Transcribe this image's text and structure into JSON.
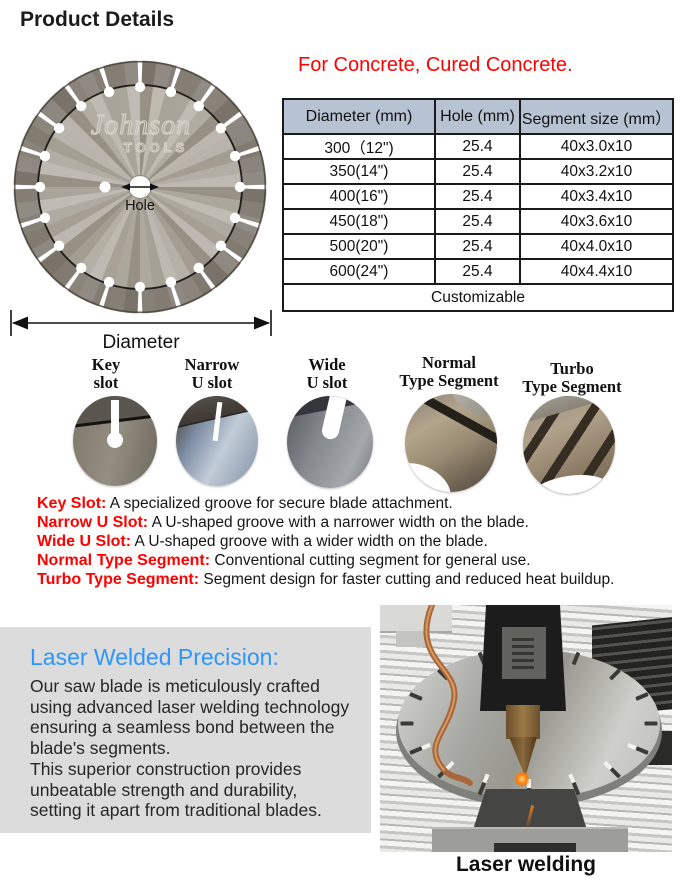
{
  "page": {
    "title": "Product Details"
  },
  "intro": {
    "subtitle": "For Concrete, Cured Concrete."
  },
  "blade": {
    "brand_line1": "Johnson",
    "brand_line2": "TOOLS",
    "hole_label": "Hole",
    "diameter_label": "Diameter"
  },
  "spec_table": {
    "headers": [
      "Diameter (mm)",
      "Hole (mm)",
      "Segment size (mm）"
    ],
    "rows": [
      [
        "300（12\")",
        "25.4",
        "40x3.0x10"
      ],
      [
        "350(14\")",
        "25.4",
        "40x3.2x10"
      ],
      [
        "400(16\")",
        "25.4",
        "40x3.4x10"
      ],
      [
        "450(18\")",
        "25.4",
        "40x3.6x10"
      ],
      [
        "500(20\")",
        "25.4",
        "40x4.0x10"
      ],
      [
        "600(24\")",
        "25.4",
        "40x4.4x10"
      ]
    ],
    "footer": "Customizable"
  },
  "slot_gallery": {
    "items": [
      {
        "title": "Key\nslot"
      },
      {
        "title": "Narrow\nU slot"
      },
      {
        "title": "Wide\nU slot"
      },
      {
        "title": "Normal\nType Segment"
      },
      {
        "title": "Turbo\nType Segment"
      }
    ]
  },
  "descriptions": {
    "items": [
      {
        "label": "Key Slot:",
        "text": " A specialized groove for secure blade attachment."
      },
      {
        "label": "Narrow U Slot:",
        "text": " A U-shaped groove with a narrower width on the blade."
      },
      {
        "label": "Wide U Slot:",
        "text": " A U-shaped groove with a wider width on the blade."
      },
      {
        "label": "Normal Type Segment:",
        "text": " Conventional cutting segment for general use."
      },
      {
        "label": "Turbo Type Segment:",
        "text": " Segment design for faster cutting and reduced heat buildup."
      }
    ]
  },
  "laser_section": {
    "heading": "Laser Welded Precision:",
    "body": "Our saw blade is meticulously crafted\nusing advanced laser welding technology\nensuring a seamless bond between the\nblade's segments.\nThis superior construction provides\nunbeatable strength and durability,\nsetting it apart from traditional blades.",
    "caption": "Laser welding"
  },
  "colors": {
    "accent_red": "#ff0000",
    "accent_blue": "#2d96fc",
    "table_header_bg": "#b7c3d3",
    "panel_bg": "#dcdcdc"
  }
}
